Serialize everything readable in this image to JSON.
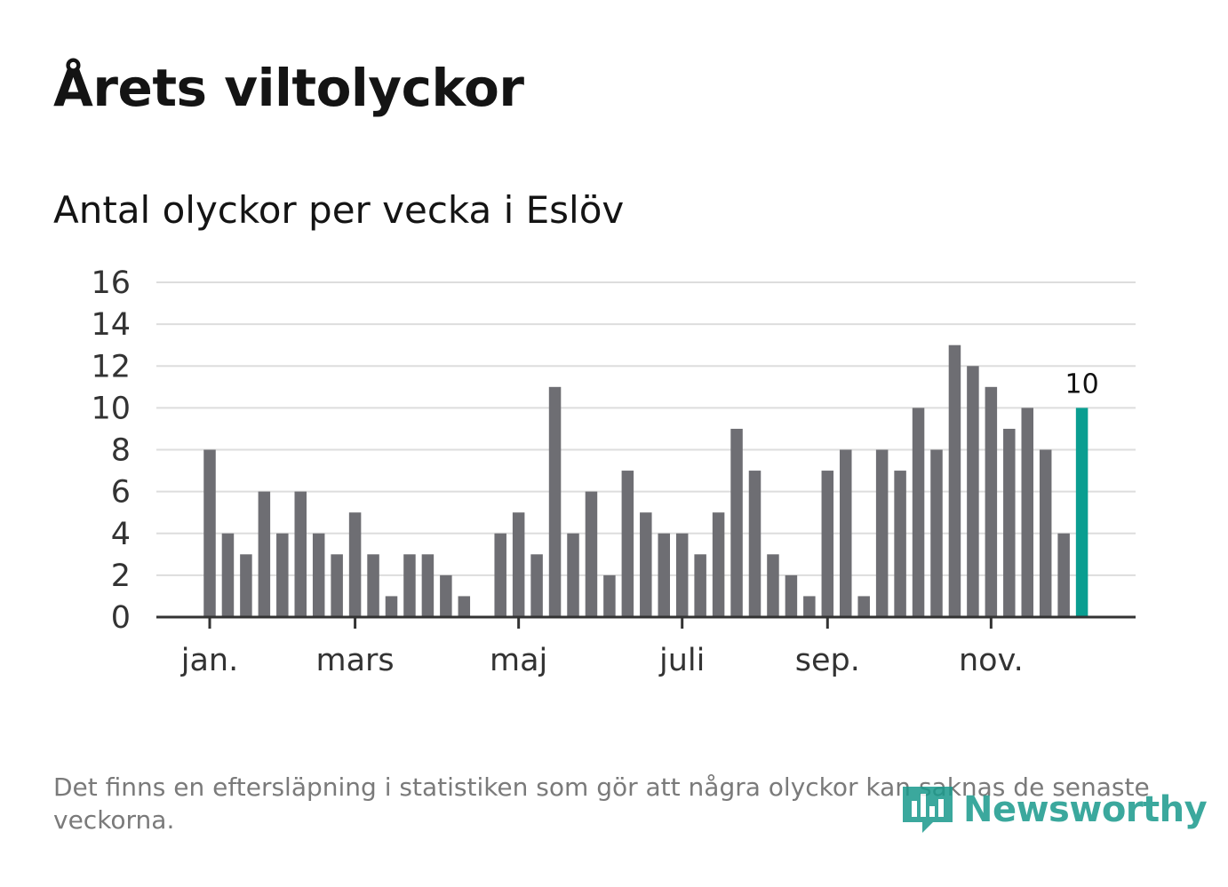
{
  "header": {
    "title": "Årets viltolyckor",
    "subtitle": "Antal olyckor per vecka i Eslöv"
  },
  "footnote": "Det finns en eftersläpning i statistiken som gör att några olyckor kan saknas de senaste veckorna.",
  "logo": {
    "text": "Newsworthy",
    "icon": "bar-chart-bubble-icon"
  },
  "colors": {
    "bar": "#6e6e73",
    "highlight": "#0a9e91",
    "grid": "#dddddd",
    "axis": "#333333"
  },
  "chart_data": {
    "type": "bar",
    "title": "Årets viltolyckor",
    "subtitle": "Antal olyckor per vecka i Eslöv",
    "xlabel": "",
    "ylabel": "",
    "ylim": [
      0,
      16
    ],
    "yticks": [
      0,
      2,
      4,
      6,
      8,
      10,
      12,
      14,
      16
    ],
    "grid": true,
    "x_week_range": [
      1,
      54
    ],
    "month_ticks": [
      {
        "label": "jan.",
        "week": 1
      },
      {
        "label": "mars",
        "week": 9
      },
      {
        "label": "maj",
        "week": 18
      },
      {
        "label": "juli",
        "week": 27
      },
      {
        "label": "sep.",
        "week": 35
      },
      {
        "label": "nov.",
        "week": 44
      }
    ],
    "weeks": [
      1,
      2,
      3,
      4,
      5,
      6,
      7,
      8,
      9,
      10,
      11,
      12,
      13,
      14,
      15,
      16,
      17,
      18,
      19,
      20,
      21,
      22,
      23,
      24,
      25,
      26,
      27,
      28,
      29,
      30,
      31,
      32,
      33,
      34,
      35,
      36,
      37,
      38,
      39,
      40,
      41,
      42,
      43,
      44,
      45,
      46,
      47,
      48,
      49
    ],
    "values": [
      8,
      4,
      3,
      6,
      4,
      6,
      4,
      3,
      5,
      3,
      1,
      3,
      3,
      2,
      1,
      0,
      4,
      5,
      3,
      11,
      4,
      6,
      2,
      7,
      5,
      4,
      4,
      3,
      5,
      9,
      7,
      3,
      2,
      1,
      7,
      8,
      1,
      8,
      7,
      10,
      8,
      13,
      12,
      11,
      9,
      10,
      8,
      4,
      10
    ],
    "highlight": {
      "week": 49,
      "value": 10,
      "label": "10"
    }
  }
}
